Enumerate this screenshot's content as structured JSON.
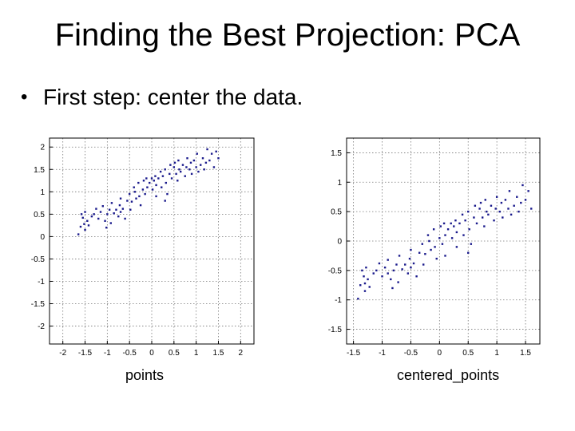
{
  "slide": {
    "title": "Finding the Best Projection: PCA",
    "bullet": "First step: center the data."
  },
  "captions": {
    "left": "points",
    "right": "centered_points"
  },
  "colors": {
    "points": "#1a1a8c",
    "grid": "#777777",
    "axes": "#000000"
  },
  "chart_data": [
    {
      "type": "scatter",
      "title": "",
      "xlabel": "",
      "ylabel": "",
      "xlim": [
        -2.3,
        2.3
      ],
      "ylim": [
        -2.4,
        2.2
      ],
      "xticks": [
        -2,
        -1.5,
        -1,
        -0.5,
        0,
        0.5,
        1,
        1.5,
        2
      ],
      "xtick_labels": [
        "-2",
        "-1.5",
        "-1",
        "-0.5",
        "0",
        "0.5",
        "1",
        "1.5",
        "2"
      ],
      "yticks": [
        2,
        1.5,
        1,
        0.5,
        0,
        -0.5,
        -1,
        -1.5,
        -2
      ],
      "ytick_labels": [
        "2",
        "1.5",
        "1",
        "0.5",
        "0",
        "-0.5",
        "-1",
        "-1.5",
        "-2"
      ],
      "grid": true,
      "points": [
        [
          -1.65,
          0.05
        ],
        [
          -1.6,
          0.22
        ],
        [
          -1.58,
          0.5
        ],
        [
          -1.55,
          0.42
        ],
        [
          -1.52,
          0.28
        ],
        [
          -1.5,
          0.55
        ],
        [
          -1.45,
          0.35
        ],
        [
          -1.42,
          0.25
        ],
        [
          -1.35,
          0.45
        ],
        [
          -1.3,
          0.5
        ],
        [
          -1.25,
          0.62
        ],
        [
          -1.2,
          0.4
        ],
        [
          -1.15,
          0.55
        ],
        [
          -1.1,
          0.68
        ],
        [
          -1.05,
          0.35
        ],
        [
          -1.02,
          0.2
        ],
        [
          -1.0,
          0.5
        ],
        [
          -0.95,
          0.6
        ],
        [
          -0.92,
          0.3
        ],
        [
          -0.9,
          0.75
        ],
        [
          -0.85,
          0.52
        ],
        [
          -0.8,
          0.6
        ],
        [
          -0.75,
          0.45
        ],
        [
          -0.72,
          0.7
        ],
        [
          -0.7,
          0.55
        ],
        [
          -0.65,
          0.62
        ],
        [
          -0.6,
          0.4
        ],
        [
          -0.55,
          0.8
        ],
        [
          -0.5,
          0.95
        ],
        [
          -0.48,
          0.6
        ],
        [
          -0.45,
          0.78
        ],
        [
          -0.4,
          1.1
        ],
        [
          -0.38,
          1.0
        ],
        [
          -0.35,
          0.85
        ],
        [
          -0.3,
          1.2
        ],
        [
          -0.28,
          0.9
        ],
        [
          -0.25,
          0.7
        ],
        [
          -0.2,
          1.05
        ],
        [
          -0.18,
          1.25
        ],
        [
          -0.15,
          0.95
        ],
        [
          -0.12,
          1.3
        ],
        [
          -0.1,
          1.1
        ],
        [
          -0.05,
          1.2
        ],
        [
          0.0,
          1.3
        ],
        [
          0.02,
          1.05
        ],
        [
          0.05,
          1.25
        ],
        [
          0.08,
          1.35
        ],
        [
          0.1,
          1.15
        ],
        [
          0.15,
          1.3
        ],
        [
          0.2,
          1.45
        ],
        [
          0.22,
          1.1
        ],
        [
          0.25,
          1.35
        ],
        [
          0.3,
          1.5
        ],
        [
          0.32,
          1.2
        ],
        [
          0.35,
          0.95
        ],
        [
          0.4,
          1.4
        ],
        [
          0.42,
          1.6
        ],
        [
          0.45,
          1.3
        ],
        [
          0.5,
          1.55
        ],
        [
          0.52,
          1.65
        ],
        [
          0.55,
          1.4
        ],
        [
          0.58,
          1.25
        ],
        [
          0.6,
          1.7
        ],
        [
          0.62,
          1.5
        ],
        [
          0.65,
          1.45
        ],
        [
          0.7,
          1.6
        ],
        [
          0.75,
          1.35
        ],
        [
          0.78,
          1.55
        ],
        [
          0.8,
          1.75
        ],
        [
          0.85,
          1.5
        ],
        [
          0.88,
          1.65
        ],
        [
          0.9,
          1.4
        ],
        [
          0.95,
          1.7
        ],
        [
          1.0,
          1.55
        ],
        [
          1.02,
          1.85
        ],
        [
          1.05,
          1.45
        ],
        [
          1.1,
          1.6
        ],
        [
          1.15,
          1.75
        ],
        [
          1.18,
          1.5
        ],
        [
          1.22,
          1.65
        ],
        [
          1.25,
          1.95
        ],
        [
          1.3,
          1.7
        ],
        [
          1.35,
          1.85
        ],
        [
          1.4,
          1.55
        ],
        [
          1.45,
          1.9
        ],
        [
          1.5,
          1.75
        ],
        [
          -1.5,
          0.15
        ],
        [
          -0.7,
          0.85
        ],
        [
          0.3,
          0.8
        ],
        [
          0.1,
          0.9
        ]
      ]
    },
    {
      "type": "scatter",
      "title": "",
      "xlabel": "",
      "ylabel": "",
      "xlim": [
        -1.62,
        1.75
      ],
      "ylim": [
        -1.75,
        1.75
      ],
      "xticks": [
        -1.5,
        -1,
        -0.5,
        0,
        0.5,
        1,
        1.5
      ],
      "xtick_labels": [
        "-1.5",
        "-1",
        "-0.5",
        "0",
        "0.5",
        "1",
        "1.5"
      ],
      "yticks": [
        1.5,
        1,
        0.5,
        0,
        -0.5,
        -1,
        -1.5
      ],
      "ytick_labels": [
        "1.5",
        "1",
        "0.5",
        "0",
        "-0.5",
        "-1",
        "-1.5"
      ],
      "grid": true,
      "points": [
        [
          -1.42,
          -0.98
        ],
        [
          -1.38,
          -0.75
        ],
        [
          -1.35,
          -0.5
        ],
        [
          -1.32,
          -0.6
        ],
        [
          -1.3,
          -0.72
        ],
        [
          -1.28,
          -0.45
        ],
        [
          -1.25,
          -0.65
        ],
        [
          -1.22,
          -0.78
        ],
        [
          -1.15,
          -0.55
        ],
        [
          -1.1,
          -0.5
        ],
        [
          -1.05,
          -0.38
        ],
        [
          -1.0,
          -0.6
        ],
        [
          -0.95,
          -0.45
        ],
        [
          -0.9,
          -0.32
        ],
        [
          -0.85,
          -0.65
        ],
        [
          -0.82,
          -0.8
        ],
        [
          -0.8,
          -0.5
        ],
        [
          -0.75,
          -0.4
        ],
        [
          -0.72,
          -0.7
        ],
        [
          -0.7,
          -0.25
        ],
        [
          -0.65,
          -0.48
        ],
        [
          -0.6,
          -0.4
        ],
        [
          -0.55,
          -0.55
        ],
        [
          -0.52,
          -0.3
        ],
        [
          -0.5,
          -0.45
        ],
        [
          -0.45,
          -0.38
        ],
        [
          -0.4,
          -0.6
        ],
        [
          -0.35,
          -0.2
        ],
        [
          -0.3,
          -0.05
        ],
        [
          -0.28,
          -0.4
        ],
        [
          -0.25,
          -0.22
        ],
        [
          -0.2,
          0.1
        ],
        [
          -0.18,
          0.0
        ],
        [
          -0.15,
          -0.15
        ],
        [
          -0.1,
          0.2
        ],
        [
          -0.08,
          -0.1
        ],
        [
          -0.05,
          -0.3
        ],
        [
          0.0,
          0.05
        ],
        [
          0.02,
          0.25
        ],
        [
          0.05,
          -0.05
        ],
        [
          0.08,
          0.3
        ],
        [
          0.1,
          0.1
        ],
        [
          0.15,
          0.2
        ],
        [
          0.2,
          0.3
        ],
        [
          0.22,
          0.05
        ],
        [
          0.25,
          0.25
        ],
        [
          0.28,
          0.35
        ],
        [
          0.3,
          0.15
        ],
        [
          0.35,
          0.3
        ],
        [
          0.4,
          0.45
        ],
        [
          0.42,
          0.1
        ],
        [
          0.45,
          0.35
        ],
        [
          0.5,
          0.5
        ],
        [
          0.52,
          0.2
        ],
        [
          0.55,
          -0.05
        ],
        [
          0.6,
          0.4
        ],
        [
          0.62,
          0.6
        ],
        [
          0.65,
          0.3
        ],
        [
          0.7,
          0.55
        ],
        [
          0.72,
          0.65
        ],
        [
          0.75,
          0.4
        ],
        [
          0.78,
          0.25
        ],
        [
          0.8,
          0.7
        ],
        [
          0.82,
          0.5
        ],
        [
          0.85,
          0.45
        ],
        [
          0.9,
          0.6
        ],
        [
          0.95,
          0.35
        ],
        [
          0.98,
          0.55
        ],
        [
          1.0,
          0.75
        ],
        [
          1.05,
          0.5
        ],
        [
          1.08,
          0.65
        ],
        [
          1.1,
          0.4
        ],
        [
          1.15,
          0.7
        ],
        [
          1.2,
          0.55
        ],
        [
          1.22,
          0.85
        ],
        [
          1.25,
          0.45
        ],
        [
          1.3,
          0.6
        ],
        [
          1.35,
          0.75
        ],
        [
          1.38,
          0.5
        ],
        [
          1.42,
          0.65
        ],
        [
          1.45,
          0.95
        ],
        [
          1.5,
          0.7
        ],
        [
          1.55,
          0.85
        ],
        [
          1.6,
          0.55
        ],
        [
          -1.3,
          -0.85
        ],
        [
          -0.5,
          -0.15
        ],
        [
          0.5,
          -0.2
        ],
        [
          0.3,
          -0.1
        ],
        [
          -0.9,
          -0.55
        ],
        [
          0.1,
          -0.25
        ]
      ]
    }
  ]
}
